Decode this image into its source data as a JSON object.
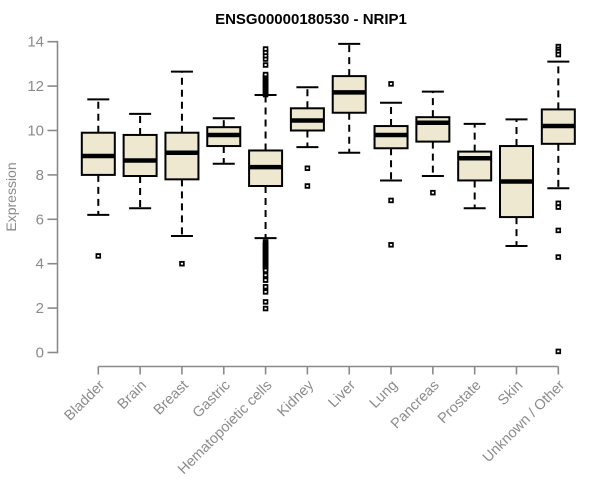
{
  "chart_data": {
    "type": "boxplot",
    "title": "ENSG00000180530 - NRIP1",
    "ylabel": "Expression",
    "xlabel": "",
    "ylim": [
      0,
      14
    ],
    "yticks": [
      0,
      2,
      4,
      6,
      8,
      10,
      12,
      14
    ],
    "grid": false,
    "legend": "none",
    "categories": [
      "Bladder",
      "Brain",
      "Breast",
      "Gastric",
      "Hematopoietic cells",
      "Kidney",
      "Liver",
      "Lung",
      "Pancreas",
      "Prostate",
      "Skin",
      "Unknown / Other"
    ],
    "boxes": [
      {
        "category": "Bladder",
        "whisker_low": 6.2,
        "q1": 8.0,
        "median": 8.85,
        "q3": 9.9,
        "whisker_high": 11.4,
        "outliers": [
          4.35
        ]
      },
      {
        "category": "Brain",
        "whisker_low": 6.5,
        "q1": 7.95,
        "median": 8.65,
        "q3": 9.8,
        "whisker_high": 10.75,
        "outliers": []
      },
      {
        "category": "Breast",
        "whisker_low": 5.25,
        "q1": 7.8,
        "median": 9.0,
        "q3": 9.9,
        "whisker_high": 12.65,
        "outliers": [
          4.0
        ]
      },
      {
        "category": "Gastric",
        "whisker_low": 8.5,
        "q1": 9.3,
        "median": 9.8,
        "q3": 10.15,
        "whisker_high": 10.55,
        "outliers": []
      },
      {
        "category": "Hematopoietic cells",
        "whisker_low": 5.15,
        "q1": 7.5,
        "median": 8.35,
        "q3": 9.1,
        "whisker_high": 11.6,
        "outliers": [
          11.62,
          11.68,
          11.74,
          11.8,
          11.86,
          11.92,
          11.98,
          12.04,
          12.1,
          12.16,
          12.22,
          12.28,
          12.34,
          12.4,
          12.46,
          12.52,
          12.95,
          13.22,
          13.37,
          13.52,
          13.67,
          4.98,
          4.92,
          4.86,
          4.8,
          4.74,
          4.68,
          4.62,
          4.56,
          4.5,
          4.44,
          4.38,
          4.32,
          4.26,
          4.2,
          4.14,
          4.08,
          4.02,
          3.96,
          3.9,
          3.84,
          3.78,
          3.7,
          3.48,
          3.26,
          2.96,
          2.73,
          2.28,
          1.98
        ]
      },
      {
        "category": "Kidney",
        "whisker_low": 9.25,
        "q1": 10.0,
        "median": 10.45,
        "q3": 11.0,
        "whisker_high": 11.95,
        "outliers": [
          8.3,
          7.5
        ]
      },
      {
        "category": "Liver",
        "whisker_low": 9.0,
        "q1": 10.8,
        "median": 11.72,
        "q3": 12.45,
        "whisker_high": 13.9,
        "outliers": []
      },
      {
        "category": "Lung",
        "whisker_low": 7.75,
        "q1": 9.2,
        "median": 9.8,
        "q3": 10.2,
        "whisker_high": 11.25,
        "outliers": [
          12.1,
          6.85,
          4.85
        ]
      },
      {
        "category": "Pancreas",
        "whisker_low": 7.95,
        "q1": 9.5,
        "median": 10.35,
        "q3": 10.6,
        "whisker_high": 11.75,
        "outliers": [
          7.2
        ]
      },
      {
        "category": "Prostate",
        "whisker_low": 6.5,
        "q1": 7.75,
        "median": 8.75,
        "q3": 9.05,
        "whisker_high": 10.3,
        "outliers": []
      },
      {
        "category": "Skin",
        "whisker_low": 4.8,
        "q1": 6.1,
        "median": 7.7,
        "q3": 9.3,
        "whisker_high": 10.5,
        "outliers": []
      },
      {
        "category": "Unknown / Other",
        "whisker_low": 7.4,
        "q1": 9.4,
        "median": 10.2,
        "q3": 10.95,
        "whisker_high": 13.1,
        "outliers": [
          13.78,
          13.65,
          13.55,
          13.42,
          6.72,
          6.55,
          5.5,
          4.3,
          0.05
        ]
      }
    ],
    "colors": {
      "box_fill": "#EDE8CF",
      "box_stroke": "#000000",
      "median": "#000000",
      "whisker": "#000000",
      "outlier": "#000000",
      "axis": "#8A8A8A",
      "tick_label": "#8B8B8B",
      "title": "#000000",
      "background": "#FFFFFF"
    }
  }
}
